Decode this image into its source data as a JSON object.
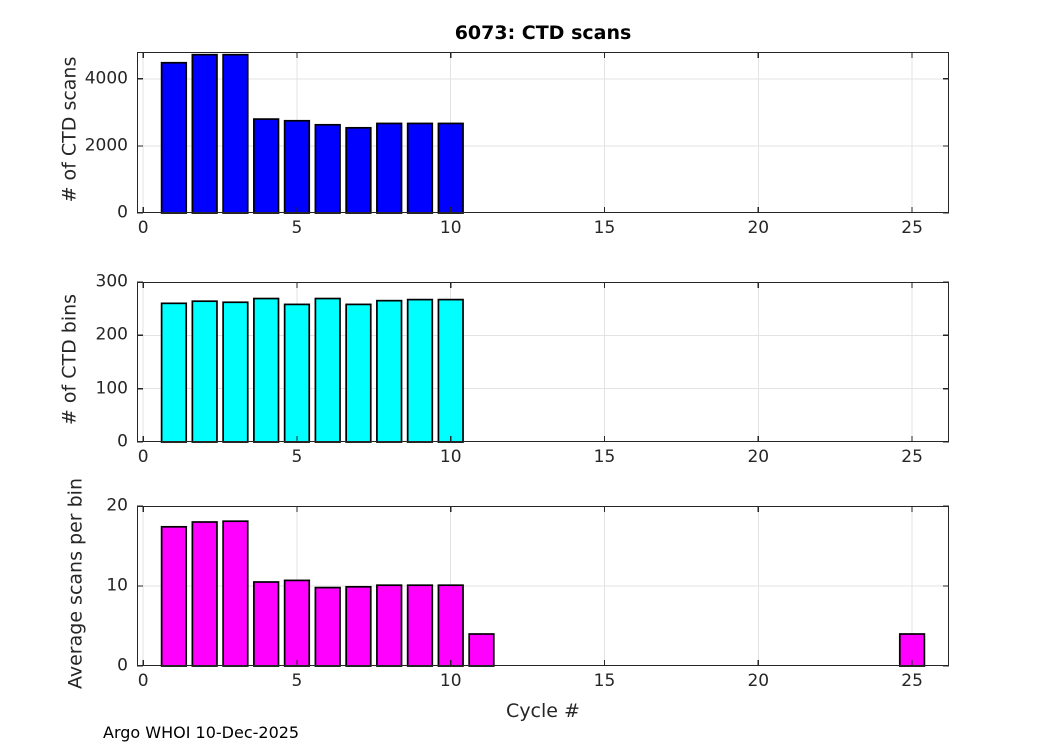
{
  "title": "6073: CTD scans",
  "footer": "Argo WHOI 10-Dec-2025",
  "colors": {
    "scans_bar": "#0000ff",
    "bins_bar": "#00ffff",
    "avg_bar": "#ff00ff",
    "bar_edge": "#000000",
    "axis": "#262626",
    "grid": "#e3e3e3",
    "title_text": "#000000",
    "label_text": "#262626"
  },
  "chart_data": [
    {
      "type": "bar",
      "name": "ctd-scans",
      "ylabel": "# of CTD scans",
      "x": [
        1,
        2,
        3,
        4,
        5,
        6,
        7,
        8,
        9,
        10
      ],
      "values": [
        4480,
        4720,
        4720,
        2800,
        2750,
        2630,
        2540,
        2670,
        2670,
        2670
      ],
      "xlim": [
        -0.2,
        26.2
      ],
      "ylim": [
        0,
        4800
      ],
      "xticks": [
        0,
        5,
        10,
        15,
        20,
        25
      ],
      "yticks": [
        0,
        2000,
        4000
      ],
      "bar_width": 0.8,
      "bar_color": "#0000ff",
      "grid": true,
      "legend": null
    },
    {
      "type": "bar",
      "name": "ctd-bins",
      "ylabel": "# of CTD bins",
      "x": [
        1,
        2,
        3,
        4,
        5,
        6,
        7,
        8,
        9,
        10
      ],
      "values": [
        260,
        264,
        262,
        269,
        258,
        269,
        258,
        265,
        267,
        267
      ],
      "xlim": [
        -0.2,
        26.2
      ],
      "ylim": [
        0,
        300
      ],
      "xticks": [
        0,
        5,
        10,
        15,
        20,
        25
      ],
      "yticks": [
        0,
        100,
        200,
        300
      ],
      "bar_width": 0.8,
      "bar_color": "#00ffff",
      "grid": true,
      "legend": null
    },
    {
      "type": "bar",
      "name": "avg-scans-per-bin",
      "ylabel": "Average scans per bin",
      "xlabel": "Cycle #",
      "x": [
        1,
        2,
        3,
        4,
        5,
        6,
        7,
        8,
        9,
        10,
        11,
        25
      ],
      "values": [
        17.4,
        18.0,
        18.1,
        10.5,
        10.7,
        9.8,
        9.9,
        10.1,
        10.1,
        10.1,
        4.0,
        4.0
      ],
      "xlim": [
        -0.2,
        26.2
      ],
      "ylim": [
        0,
        20
      ],
      "xticks": [
        0,
        5,
        10,
        15,
        20,
        25
      ],
      "yticks": [
        0,
        10,
        20
      ],
      "bar_width": 0.8,
      "bar_color": "#ff00ff",
      "grid": true,
      "legend": null
    }
  ]
}
